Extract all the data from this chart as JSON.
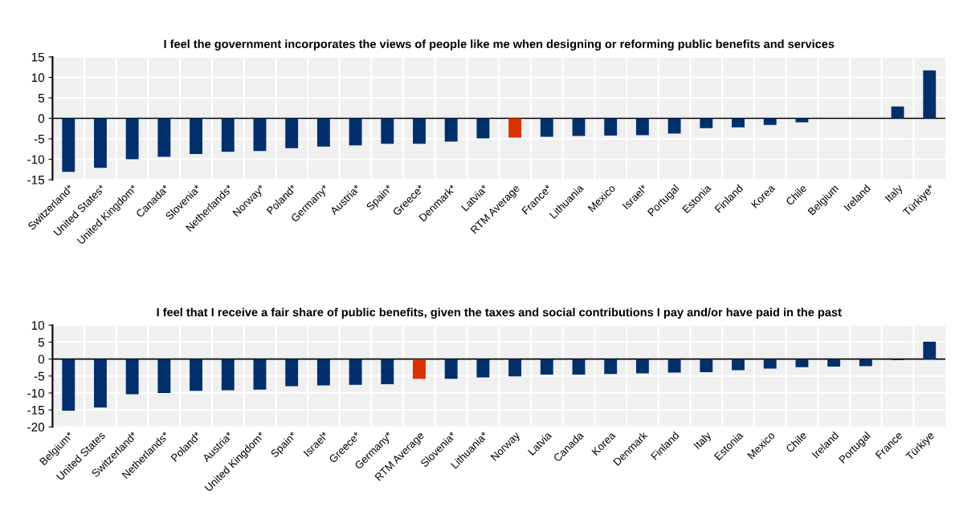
{
  "chart_data": [
    {
      "type": "bar",
      "title": "I feel the government incorporates the views of people like me when designing or reforming public benefits and services",
      "categories": [
        "Switzerland*",
        "United States*",
        "United Kingdom*",
        "Canada*",
        "Slovenia*",
        "Netherlands*",
        "Norway*",
        "Poland*",
        "Germany*",
        "Austria*",
        "Spain*",
        "Greece*",
        "Denmark*",
        "Latvia*",
        "RTM Average",
        "France*",
        "Lithuania",
        "Mexico",
        "Israel*",
        "Portugal",
        "Estonia",
        "Finland",
        "Korea",
        "Chile",
        "Belgium",
        "Ireland",
        "Italy",
        "Türkiye*"
      ],
      "values": [
        -13.1,
        -12.1,
        -10.0,
        -9.4,
        -8.7,
        -8.2,
        -8.0,
        -7.3,
        -6.9,
        -6.6,
        -6.2,
        -6.2,
        -5.7,
        -4.9,
        -4.7,
        -4.5,
        -4.3,
        -4.2,
        -4.1,
        -3.7,
        -2.4,
        -2.2,
        -1.6,
        -1.0,
        0,
        0,
        2.9,
        11.7
      ],
      "colors": [
        "#002f6c",
        "#002f6c",
        "#002f6c",
        "#002f6c",
        "#002f6c",
        "#002f6c",
        "#002f6c",
        "#002f6c",
        "#002f6c",
        "#002f6c",
        "#002f6c",
        "#002f6c",
        "#002f6c",
        "#002f6c",
        "#dc3000",
        "#002f6c",
        "#002f6c",
        "#002f6c",
        "#002f6c",
        "#002f6c",
        "#002f6c",
        "#002f6c",
        "#002f6c",
        "#002f6c",
        "#002f6c",
        "#002f6c",
        "#002f6c",
        "#002f6c"
      ],
      "ylim": [
        -15,
        15
      ],
      "yticks": [
        -15,
        -10,
        -5,
        0,
        5,
        10,
        15
      ],
      "grid": true
    },
    {
      "type": "bar",
      "title": "I feel that I receive a fair share of public benefits, given the taxes and social contributions I pay and/or have paid in the past",
      "categories": [
        "Belgium*",
        "United States",
        "Switzerland*",
        "Netherlands*",
        "Poland*",
        "Austria*",
        "United Kingdom*",
        "Spain*",
        "Israel*",
        "Greece*",
        "Germany*",
        "RTM Average",
        "Slovenia*",
        "Lithuania*",
        "Norway",
        "Latvia",
        "Canada",
        "Korea",
        "Denmark",
        "Finland",
        "Italy",
        "Estonia",
        "Mexico",
        "Chile",
        "Ireland",
        "Portugal",
        "France",
        "Türkiye"
      ],
      "values": [
        -15.2,
        -14.3,
        -10.4,
        -10.0,
        -9.4,
        -9.2,
        -9.0,
        -8.0,
        -7.8,
        -7.6,
        -7.4,
        -5.8,
        -5.8,
        -5.4,
        -5.1,
        -4.6,
        -4.6,
        -4.4,
        -4.2,
        -4.0,
        -3.9,
        -3.3,
        -2.8,
        -2.4,
        -2.2,
        -2.1,
        -0.3,
        5.1
      ],
      "colors": [
        "#002f6c",
        "#002f6c",
        "#002f6c",
        "#002f6c",
        "#002f6c",
        "#002f6c",
        "#002f6c",
        "#002f6c",
        "#002f6c",
        "#002f6c",
        "#002f6c",
        "#dc3000",
        "#002f6c",
        "#002f6c",
        "#002f6c",
        "#002f6c",
        "#002f6c",
        "#002f6c",
        "#002f6c",
        "#002f6c",
        "#002f6c",
        "#002f6c",
        "#002f6c",
        "#002f6c",
        "#002f6c",
        "#002f6c",
        "#002f6c",
        "#002f6c"
      ],
      "ylim": [
        -20,
        10
      ],
      "yticks": [
        -20,
        -15,
        -10,
        -5,
        0,
        5,
        10
      ],
      "grid": true
    }
  ]
}
